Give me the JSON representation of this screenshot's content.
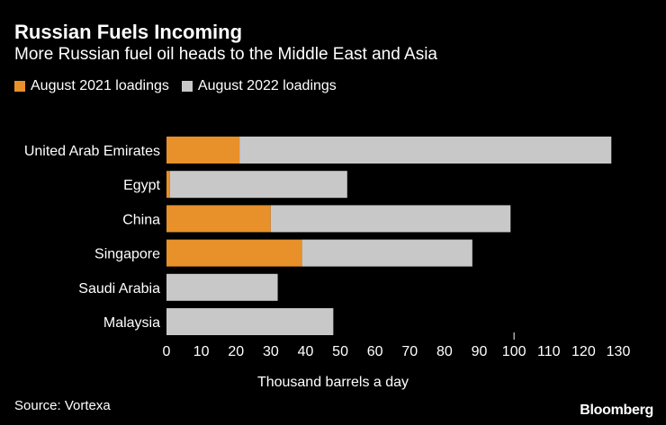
{
  "chart_data": {
    "type": "bar",
    "orientation": "horizontal",
    "stacked": true,
    "title": "Russian Fuels Incoming",
    "subtitle": "More Russian fuel oil heads to the Middle East and Asia",
    "categories": [
      "United Arab Emirates",
      "Egypt",
      "China",
      "Singapore",
      "Saudi Arabia",
      "Malaysia"
    ],
    "series": [
      {
        "name": "August 2021 loadings",
        "color": "#e8902a",
        "values": [
          21,
          1,
          30,
          39,
          0,
          0
        ]
      },
      {
        "name": "August 2022 loadings",
        "color": "#c8c8c8",
        "values": [
          107,
          51,
          69,
          49,
          32,
          48
        ]
      }
    ],
    "xlabel": "Thousand barrels a day",
    "ylabel": "",
    "xlim": [
      0,
      130
    ],
    "xticks": [
      0,
      10,
      20,
      30,
      40,
      50,
      60,
      70,
      80,
      90,
      100,
      110,
      120,
      130
    ],
    "grid": false,
    "legend_position": "top-left"
  },
  "source": "Source: Vortexa",
  "brand": "Bloomberg"
}
